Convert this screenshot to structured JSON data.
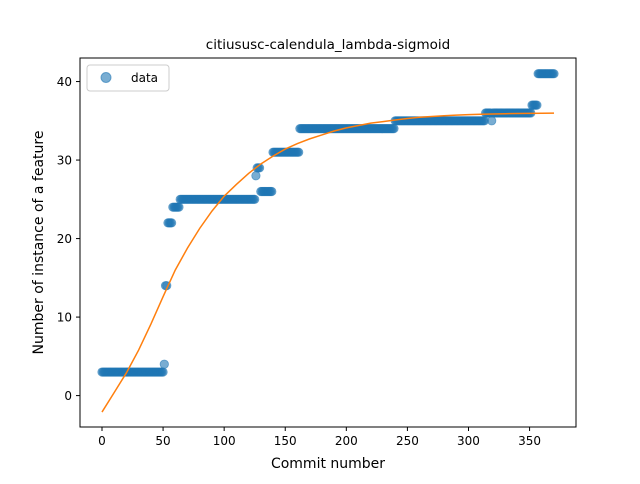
{
  "chart_data": {
    "type": "scatter",
    "title": "citiususc-calendula_lambda-sigmoid",
    "xlabel": "Commit number",
    "ylabel": "Number of instance of a feature",
    "xlim": [
      -18,
      388
    ],
    "ylim": [
      -4,
      43
    ],
    "x_ticks": [
      0,
      50,
      100,
      150,
      200,
      250,
      300,
      350
    ],
    "y_ticks": [
      0,
      10,
      20,
      30,
      40
    ],
    "grid": false,
    "legend": {
      "position": "top-left",
      "entries": [
        "data"
      ]
    },
    "colors": {
      "data": "#1f77b4",
      "fit": "#ff7f0e"
    },
    "series": [
      {
        "name": "data",
        "kind": "points",
        "segments": [
          {
            "x_from": 0,
            "x_to": 50,
            "y": 3
          },
          {
            "x_from": 51,
            "x_to": 51,
            "y": 4
          },
          {
            "x_from": 52,
            "x_to": 53,
            "y": 14
          },
          {
            "x_from": 54,
            "x_to": 57,
            "y": 22
          },
          {
            "x_from": 58,
            "x_to": 63,
            "y": 24
          },
          {
            "x_from": 64,
            "x_to": 125,
            "y": 25
          },
          {
            "x_from": 126,
            "x_to": 126,
            "y": 28
          },
          {
            "x_from": 127,
            "x_to": 129,
            "y": 29
          },
          {
            "x_from": 130,
            "x_to": 139,
            "y": 26
          },
          {
            "x_from": 140,
            "x_to": 161,
            "y": 31
          },
          {
            "x_from": 162,
            "x_to": 239,
            "y": 34
          },
          {
            "x_from": 240,
            "x_to": 313,
            "y": 35
          },
          {
            "x_from": 314,
            "x_to": 318,
            "y": 36
          },
          {
            "x_from": 319,
            "x_to": 319,
            "y": 35
          },
          {
            "x_from": 320,
            "x_to": 351,
            "y": 36
          },
          {
            "x_from": 352,
            "x_to": 356,
            "y": 37
          },
          {
            "x_from": 357,
            "x_to": 370,
            "y": 41
          }
        ]
      },
      {
        "kind": "line",
        "x": [
          0,
          10,
          20,
          30,
          40,
          50,
          60,
          70,
          80,
          90,
          100,
          110,
          120,
          130,
          140,
          150,
          160,
          170,
          180,
          190,
          200,
          210,
          220,
          230,
          240,
          250,
          260,
          270,
          280,
          290,
          300,
          310,
          320,
          330,
          340,
          350,
          360,
          370
        ],
        "y": [
          -2.1,
          0.4,
          2.9,
          5.8,
          9.1,
          12.6,
          16.0,
          18.8,
          21.3,
          23.5,
          25.4,
          26.9,
          28.3,
          29.5,
          30.5,
          31.4,
          32.1,
          32.7,
          33.2,
          33.7,
          34.1,
          34.4,
          34.7,
          34.9,
          35.1,
          35.3,
          35.45,
          35.55,
          35.65,
          35.72,
          35.78,
          35.83,
          35.87,
          35.9,
          35.93,
          35.95,
          35.97,
          35.98
        ]
      }
    ]
  }
}
